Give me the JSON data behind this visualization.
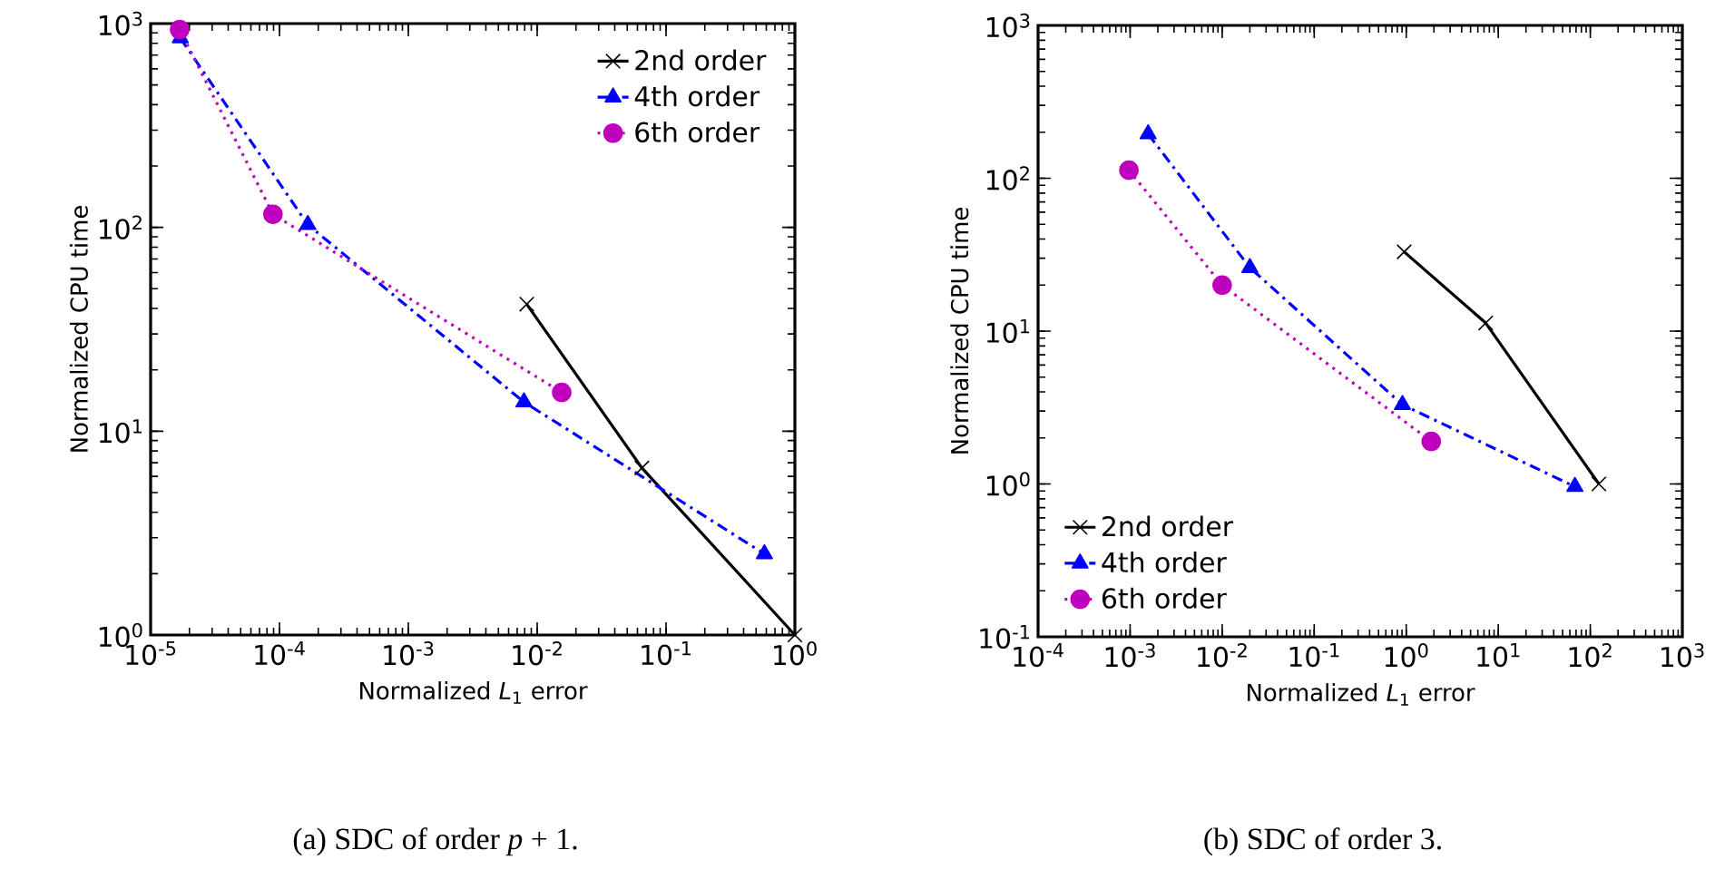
{
  "chart_data": [
    {
      "type": "line",
      "log": "xy",
      "xlabel": "Normalized *L*$_{1}$ error",
      "ylabel": "Normalized CPU time",
      "legend": "top right",
      "xlim": [
        1e-05,
        1
      ],
      "ylim": [
        1,
        1000
      ],
      "xticks": [
        {
          "value": 1e-05,
          "label": "10$^{-5}$"
        },
        {
          "value": 0.0001,
          "label": "10$^{-4}$"
        },
        {
          "value": 0.001,
          "label": "10$^{-3}$"
        },
        {
          "value": 0.01,
          "label": "10$^{-2}$"
        },
        {
          "value": 0.1,
          "label": "10$^{-1}$"
        },
        {
          "value": 1,
          "label": "10$^{0}$"
        }
      ],
      "yticks": [
        {
          "value": 1,
          "label": "10$^{0}$"
        },
        {
          "value": 10,
          "label": "10$^{1}$"
        },
        {
          "value": 100,
          "label": "10$^{2}$"
        },
        {
          "value": 1000,
          "label": "10$^{3}$"
        }
      ],
      "series": [
        {
          "name": "2nd order",
          "color": "#000000",
          "marker": "cross",
          "line_style": "solid",
          "x": [
            0.0083,
            0.065,
            1
          ],
          "values": [
            42,
            6.6,
            1
          ]
        },
        {
          "name": "4th order",
          "color": "#0000ff",
          "marker": "triangle",
          "line_style": "dashdot",
          "x": [
            1.7e-05,
            0.000166,
            0.0079,
            0.58
          ],
          "values": [
            850,
            103,
            13.9,
            2.5
          ]
        },
        {
          "name": "6th order",
          "color": "#bf00bf",
          "marker": "circle",
          "line_style": "dotted",
          "x": [
            1.68e-05,
            8.9e-05,
            0.0155
          ],
          "values": [
            935,
            116,
            15.5
          ]
        }
      ],
      "annotations": [
        "(a) SDC of order *p* + 1."
      ]
    },
    {
      "type": "line",
      "log": "xy",
      "xlabel": "Normalized *L*$_{1}$ error",
      "ylabel": "Normalized CPU time",
      "legend": "bottom left",
      "xlim": [
        0.0001,
        1000
      ],
      "ylim": [
        0.1,
        1000
      ],
      "xticks": [
        {
          "value": 0.0001,
          "label": "10$^{-4}$"
        },
        {
          "value": 0.001,
          "label": "10$^{-3}$"
        },
        {
          "value": 0.01,
          "label": "10$^{-2}$"
        },
        {
          "value": 0.1,
          "label": "10$^{-1}$"
        },
        {
          "value": 1,
          "label": "10$^{0}$"
        },
        {
          "value": 10,
          "label": "10$^{1}$"
        },
        {
          "value": 100,
          "label": "10$^{2}$"
        },
        {
          "value": 1000,
          "label": "10$^{3}$"
        }
      ],
      "yticks": [
        {
          "value": 0.1,
          "label": "10$^{-1}$"
        },
        {
          "value": 1,
          "label": "10$^{0}$"
        },
        {
          "value": 10,
          "label": "10$^{1}$"
        },
        {
          "value": 100,
          "label": "10$^{2}$"
        },
        {
          "value": 1000,
          "label": "10$^{3}$"
        }
      ],
      "series": [
        {
          "name": "2nd order",
          "color": "#000000",
          "marker": "cross",
          "line_style": "solid",
          "x": [
            0.95,
            7.3,
            124
          ],
          "values": [
            33,
            11.3,
            1.0
          ]
        },
        {
          "name": "4th order",
          "color": "#0000ff",
          "marker": "triangle",
          "line_style": "dashdot",
          "x": [
            0.00157,
            0.02,
            0.91,
            68
          ],
          "values": [
            195,
            26,
            3.3,
            0.96
          ]
        },
        {
          "name": "6th order",
          "color": "#bf00bf",
          "marker": "circle",
          "line_style": "dotted",
          "x": [
            0.00097,
            0.01,
            1.87
          ],
          "values": [
            113,
            20,
            1.9
          ]
        }
      ],
      "annotations": [
        "(b) SDC of order 3."
      ]
    }
  ]
}
